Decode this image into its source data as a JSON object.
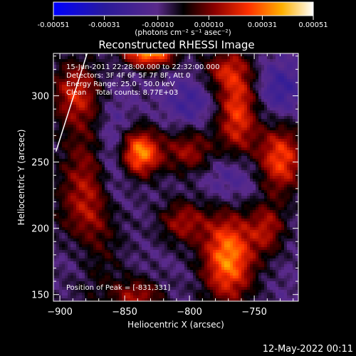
{
  "colorbar": {
    "ticks": [
      "-0.00051",
      "-0.00031",
      "-0.00010",
      "0.00010",
      "0.00031",
      "0.00051"
    ],
    "units": "(photons cm⁻² s⁻¹ asec⁻²)"
  },
  "chart_data": {
    "type": "heatmap",
    "title": "Reconstructed RHESSI Image",
    "xlabel": "Heliocentric X (arcsec)",
    "ylabel": "Heliocentric Y (arcsec)",
    "xlim": [
      -905,
      -716
    ],
    "ylim": [
      145,
      332
    ],
    "x_ticks": [
      -900,
      -850,
      -800,
      -750
    ],
    "y_ticks": [
      150,
      200,
      250,
      300
    ],
    "color_range": [
      -0.00051,
      0.00051
    ],
    "peak": {
      "x": -831,
      "y": 331
    },
    "info_lines": [
      "15-Jun-2011 22:28:00.000 to 22:32:00.000",
      "Detectors: 3F 4F 6F 5F 7F 8F, Att 0",
      "Energy Range: 25.0 - 50.0 keV",
      "Clean    Total counts: 8.77E+03"
    ],
    "peak_label": "Position of Peak = [-831,331]",
    "limb_line": {
      "from": [
        -903,
        258
      ],
      "to": [
        -879,
        332
      ]
    },
    "blobs": [
      {
        "x": -831,
        "y": 335,
        "sx": 14,
        "sy": 9,
        "amp": 1.0
      },
      {
        "x": -838,
        "y": 257,
        "sx": 11,
        "sy": 12,
        "amp": 0.85
      },
      {
        "x": -770,
        "y": 178,
        "sx": 14,
        "sy": 24,
        "amp": 0.85
      },
      {
        "x": -763,
        "y": 288,
        "sx": 11,
        "sy": 28,
        "amp": 0.65
      },
      {
        "x": -730,
        "y": 252,
        "sx": 13,
        "sy": 18,
        "amp": 0.7
      },
      {
        "x": -877,
        "y": 218,
        "sx": 17,
        "sy": 44,
        "amp": 0.55
      },
      {
        "x": -888,
        "y": 303,
        "sx": 13,
        "sy": 17,
        "amp": 0.5
      },
      {
        "x": -805,
        "y": 205,
        "sx": 13,
        "sy": 12,
        "amp": 0.45
      },
      {
        "x": -800,
        "y": 258,
        "sx": 14,
        "sy": 12,
        "amp": 0.45
      },
      {
        "x": -740,
        "y": 200,
        "sx": 10,
        "sy": 14,
        "amp": 0.45
      },
      {
        "x": -840,
        "y": 148,
        "sx": 14,
        "sy": 10,
        "amp": 0.45
      },
      {
        "x": -775,
        "y": 320,
        "sx": 12,
        "sy": 10,
        "amp": 0.35
      },
      {
        "x": -860,
        "y": 250,
        "sx": 10,
        "sy": 30,
        "amp": -0.35
      },
      {
        "x": -765,
        "y": 240,
        "sx": 15,
        "sy": 15,
        "amp": -0.3
      },
      {
        "x": -730,
        "y": 305,
        "sx": 12,
        "sy": 14,
        "amp": -0.3
      },
      {
        "x": -885,
        "y": 180,
        "sx": 12,
        "sy": 16,
        "amp": -0.25
      },
      {
        "x": -800,
        "y": 295,
        "sx": 12,
        "sy": 12,
        "amp": -0.25
      }
    ]
  },
  "footer": {
    "timestamp": "12-May-2022 00:11"
  }
}
